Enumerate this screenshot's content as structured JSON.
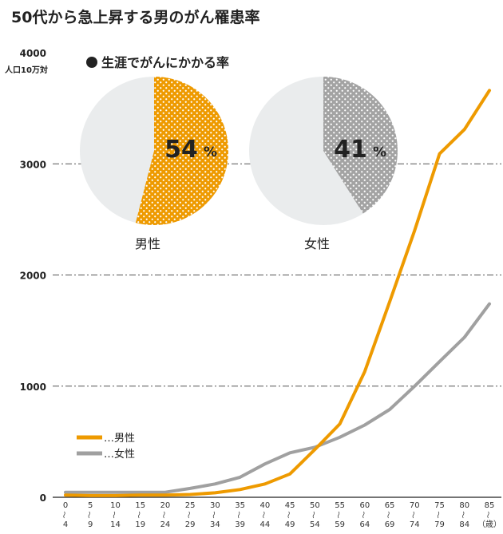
{
  "chart_data": [
    {
      "type": "line",
      "title": "50代から急上昇する男のがん罹患率",
      "ylabel": "人口10万対",
      "xlabel_unit": "（歳）",
      "ylim": [
        0,
        4000
      ],
      "yticks": [
        "0",
        "1000",
        "2000",
        "3000",
        "4000"
      ],
      "ytick_values": [
        0,
        1000,
        2000,
        3000,
        4000
      ],
      "grid": "horizontal dashed at 1000, 2000, 3000",
      "legend": "bottom-left",
      "categories": [
        {
          "start": "0",
          "end": "4"
        },
        {
          "start": "5",
          "end": "9"
        },
        {
          "start": "10",
          "end": "14"
        },
        {
          "start": "15",
          "end": "19"
        },
        {
          "start": "20",
          "end": "24"
        },
        {
          "start": "25",
          "end": "29"
        },
        {
          "start": "30",
          "end": "34"
        },
        {
          "start": "35",
          "end": "39"
        },
        {
          "start": "40",
          "end": "44"
        },
        {
          "start": "45",
          "end": "49"
        },
        {
          "start": "50",
          "end": "54"
        },
        {
          "start": "55",
          "end": "59"
        },
        {
          "start": "60",
          "end": "64"
        },
        {
          "start": "65",
          "end": "69"
        },
        {
          "start": "70",
          "end": "74"
        },
        {
          "start": "75",
          "end": "79"
        },
        {
          "start": "80",
          "end": "84"
        },
        {
          "start": "85",
          "end": "（歳）"
        }
      ],
      "series": [
        {
          "name": "…男性",
          "color": "#ee9a00",
          "values": [
            20,
            15,
            15,
            20,
            20,
            25,
            40,
            70,
            120,
            210,
            430,
            660,
            1130,
            1760,
            2400,
            3090,
            3310,
            3660
          ]
        },
        {
          "name": "…女性",
          "color": "#a0a0a0",
          "values": [
            45,
            45,
            45,
            45,
            45,
            80,
            120,
            180,
            300,
            400,
            450,
            540,
            650,
            790,
            1000,
            1220,
            1440,
            1740
          ]
        }
      ]
    },
    {
      "type": "pie",
      "title": "生涯でがんにかかる率",
      "pies": [
        {
          "label": "男性",
          "percent": "54",
          "unit": "%",
          "value": 54,
          "color": "#ee9a00"
        },
        {
          "label": "女性",
          "percent": "41",
          "unit": "%",
          "value": 41,
          "color": "#a3a3a3"
        }
      ],
      "remainder_color": "#eaeced"
    }
  ]
}
